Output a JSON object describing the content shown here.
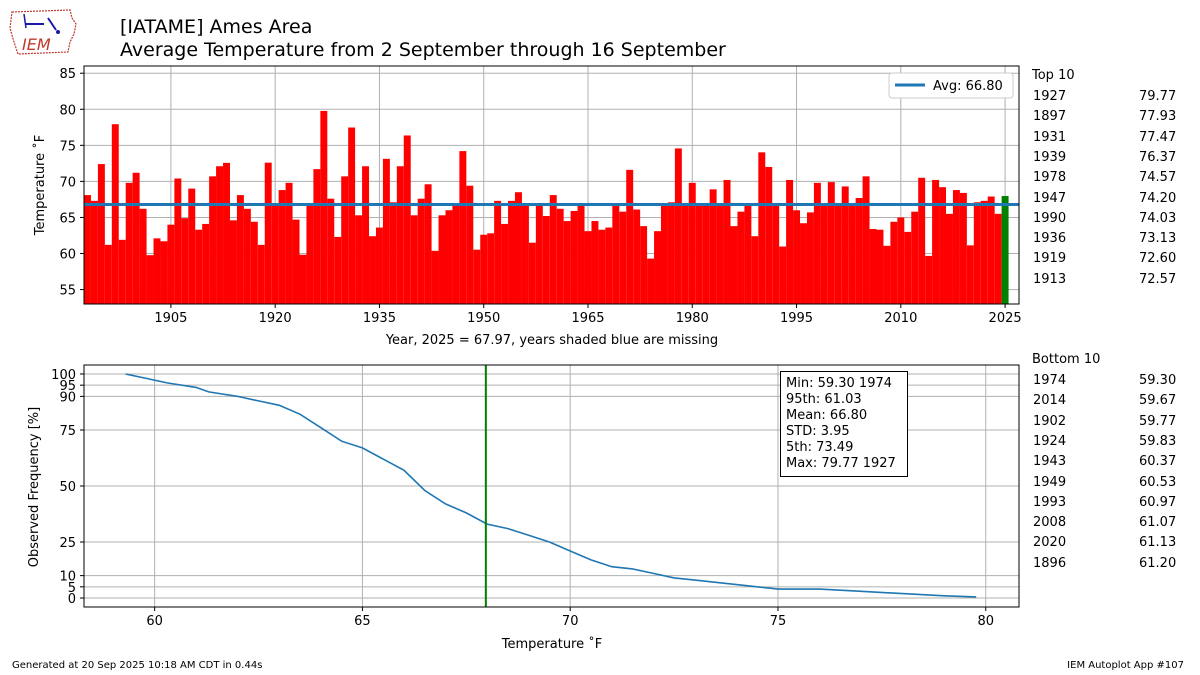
{
  "header": {
    "title_line1": "[IATAME] Ames Area",
    "title_line2": "Average Temperature from 2 September through 16 September",
    "logo_text": "IEM"
  },
  "top_chart_text": {
    "legend_label": "Avg: 66.80",
    "ylabel": "Temperature ˚F",
    "xlabel": "Year, 2025 = 67.97, years shaded blue are missing"
  },
  "bottom_chart_text": {
    "ylabel": "Observed Frequency [%]",
    "xlabel": "Temperature ˚F",
    "stats": [
      "Min: 59.30 1974",
      "95th: 61.03",
      "Mean: 66.80",
      "STD: 3.95",
      "5th: 73.49",
      "Max: 79.77 1927"
    ]
  },
  "top10": {
    "title": "Top 10",
    "rows": [
      {
        "year": "1927",
        "value": "79.77"
      },
      {
        "year": "1897",
        "value": "77.93"
      },
      {
        "year": "1931",
        "value": "77.47"
      },
      {
        "year": "1939",
        "value": "76.37"
      },
      {
        "year": "1978",
        "value": "74.57"
      },
      {
        "year": "1947",
        "value": "74.20"
      },
      {
        "year": "1990",
        "value": "74.03"
      },
      {
        "year": "1936",
        "value": "73.13"
      },
      {
        "year": "1919",
        "value": "72.60"
      },
      {
        "year": "1913",
        "value": "72.57"
      }
    ]
  },
  "bottom10": {
    "title": "Bottom 10",
    "rows": [
      {
        "year": "1974",
        "value": "59.30"
      },
      {
        "year": "2014",
        "value": "59.67"
      },
      {
        "year": "1902",
        "value": "59.77"
      },
      {
        "year": "1924",
        "value": "59.83"
      },
      {
        "year": "1943",
        "value": "60.37"
      },
      {
        "year": "1949",
        "value": "60.53"
      },
      {
        "year": "1993",
        "value": "60.97"
      },
      {
        "year": "2008",
        "value": "61.07"
      },
      {
        "year": "2020",
        "value": "61.13"
      },
      {
        "year": "1896",
        "value": "61.20"
      }
    ]
  },
  "footer": {
    "left": "Generated at 20 Sep 2025 10:18 AM CDT in 0.44s",
    "right": "IEM Autoplot App #107"
  },
  "colors": {
    "bar": "#ff0000",
    "current_year_bar": "#008000",
    "avg_line": "#1f77b4",
    "cdf_line": "#1f77b4",
    "current_marker": "#008000",
    "grid": "#b0b0b0"
  },
  "chart_data": [
    {
      "type": "bar",
      "title": "",
      "xlabel": "Year, 2025 = 67.97, years shaded blue are missing",
      "ylabel": "Temperature ˚F",
      "xlim": [
        1893,
        2026
      ],
      "ylim": [
        53,
        86
      ],
      "xticks": [
        1905,
        1920,
        1935,
        1950,
        1965,
        1980,
        1995,
        2010,
        2025
      ],
      "yticks": [
        55,
        60,
        65,
        70,
        75,
        80,
        85
      ],
      "grid": true,
      "legend": "top-right",
      "average": 66.8,
      "x": [
        1893,
        1894,
        1895,
        1896,
        1897,
        1898,
        1899,
        1900,
        1901,
        1902,
        1903,
        1904,
        1905,
        1906,
        1907,
        1908,
        1909,
        1910,
        1911,
        1912,
        1913,
        1914,
        1915,
        1916,
        1917,
        1918,
        1919,
        1920,
        1921,
        1922,
        1923,
        1924,
        1925,
        1926,
        1927,
        1928,
        1929,
        1930,
        1931,
        1932,
        1933,
        1934,
        1935,
        1936,
        1937,
        1938,
        1939,
        1940,
        1941,
        1942,
        1943,
        1944,
        1945,
        1946,
        1947,
        1948,
        1949,
        1950,
        1951,
        1952,
        1953,
        1954,
        1955,
        1956,
        1957,
        1958,
        1959,
        1960,
        1961,
        1962,
        1963,
        1964,
        1965,
        1966,
        1967,
        1968,
        1969,
        1970,
        1971,
        1972,
        1973,
        1974,
        1975,
        1976,
        1977,
        1978,
        1979,
        1980,
        1981,
        1982,
        1983,
        1984,
        1985,
        1986,
        1987,
        1988,
        1989,
        1990,
        1991,
        1992,
        1993,
        1994,
        1995,
        1996,
        1997,
        1998,
        1999,
        2000,
        2001,
        2002,
        2003,
        2004,
        2005,
        2006,
        2007,
        2008,
        2009,
        2010,
        2011,
        2012,
        2013,
        2014,
        2015,
        2016,
        2017,
        2018,
        2019,
        2020,
        2021,
        2022,
        2023,
        2024,
        2025
      ],
      "series": [
        {
          "name": "",
          "values": [
            68.1,
            67.3,
            72.4,
            61.2,
            77.93,
            61.9,
            69.8,
            71.2,
            66.2,
            59.77,
            62.1,
            61.7,
            64.0,
            70.4,
            64.9,
            69.0,
            63.3,
            64.1,
            70.7,
            72.1,
            72.57,
            64.6,
            68.1,
            66.2,
            64.4,
            61.2,
            72.6,
            66.7,
            68.8,
            69.8,
            64.7,
            59.83,
            66.7,
            71.7,
            79.77,
            67.6,
            62.3,
            70.7,
            77.47,
            65.3,
            72.1,
            62.4,
            63.6,
            73.13,
            67.1,
            72.1,
            76.37,
            65.3,
            67.6,
            69.6,
            60.37,
            65.3,
            66.0,
            66.7,
            74.2,
            69.4,
            60.53,
            62.6,
            62.8,
            67.3,
            64.1,
            67.3,
            68.5,
            66.7,
            61.5,
            66.8,
            65.2,
            68.1,
            66.2,
            64.5,
            65.9,
            66.7,
            63.1,
            64.5,
            63.3,
            63.6,
            66.7,
            65.8,
            71.6,
            66.1,
            63.8,
            59.3,
            63.1,
            67.0,
            67.1,
            74.57,
            66.8,
            69.8,
            66.7,
            66.7,
            68.9,
            66.7,
            70.2,
            63.8,
            65.8,
            66.7,
            62.4,
            74.03,
            72.0,
            66.7,
            60.97,
            70.2,
            66.0,
            64.2,
            65.7,
            69.8,
            66.7,
            69.9,
            66.7,
            69.3,
            66.7,
            67.7,
            70.7,
            63.4,
            63.3,
            61.07,
            64.4,
            65.0,
            63.0,
            65.8,
            70.5,
            59.67,
            70.2,
            69.2,
            65.5,
            68.8,
            68.4,
            61.13,
            67.1,
            67.3,
            67.9,
            65.5,
            67.97
          ]
        }
      ]
    },
    {
      "type": "line",
      "title": "",
      "xlabel": "Temperature ˚F",
      "ylabel": "Observed Frequency [%]",
      "xlim": [
        58.3,
        80.8
      ],
      "ylim": [
        -4,
        104
      ],
      "xticks": [
        60,
        65,
        70,
        75,
        80
      ],
      "yticks": [
        0,
        5,
        10,
        25,
        50,
        75,
        90,
        95,
        100
      ],
      "grid": true,
      "vertical_marker": 67.97,
      "x": [
        59.3,
        59.8,
        60.3,
        61.0,
        61.3,
        62.0,
        62.5,
        63.0,
        63.5,
        64.0,
        64.5,
        65.0,
        65.5,
        66.0,
        66.5,
        67.0,
        67.5,
        68.0,
        68.5,
        69.0,
        69.5,
        70.0,
        70.5,
        71.0,
        71.5,
        72.0,
        72.5,
        73.0,
        74.0,
        74.5,
        75.0,
        76.0,
        77.0,
        78.0,
        79.0,
        79.77
      ],
      "series": [
        {
          "name": "",
          "values": [
            100,
            98,
            96,
            94,
            92,
            90,
            88,
            86,
            82,
            76,
            70,
            67,
            62,
            57,
            48,
            42,
            38,
            33,
            31,
            28,
            25,
            21,
            17,
            14,
            13,
            11,
            9,
            8,
            6,
            5,
            4,
            4,
            3,
            2,
            1,
            0.5
          ]
        }
      ]
    }
  ]
}
